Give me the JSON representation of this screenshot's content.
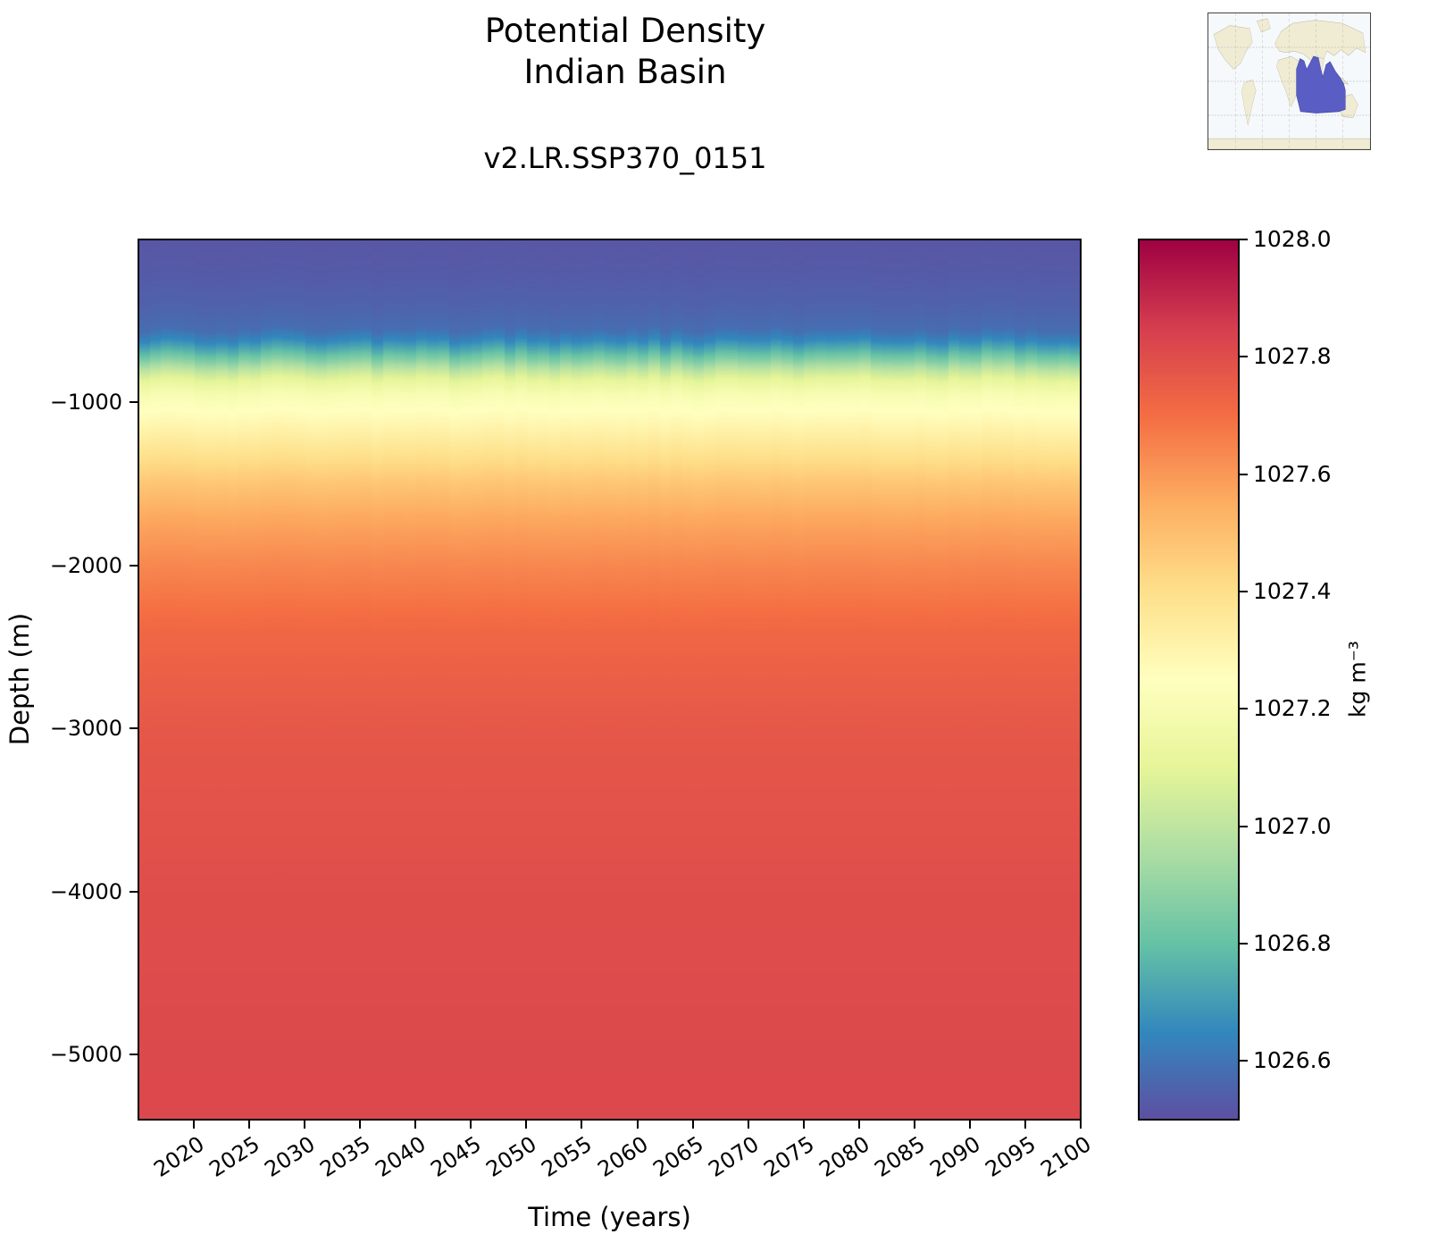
{
  "title": {
    "line1": "Potential Density",
    "line2": "Indian Basin"
  },
  "subtitle": "v2.LR.SSP370_0151",
  "inset_map": {
    "highlight_color": "#5a5ec4",
    "land_color": "#f0ecd4",
    "ocean_color": "#f6f9fb",
    "grid_color": "#aaaaaa"
  },
  "chart_data": {
    "type": "heatmap",
    "title": "Potential Density",
    "region": "Indian Basin",
    "run_label": "v2.LR.SSP370_0151",
    "xlabel": "Time (years)",
    "ylabel": "Depth (m)",
    "x_range": [
      2015,
      2100
    ],
    "x_ticks": [
      2020,
      2025,
      2030,
      2035,
      2040,
      2045,
      2050,
      2055,
      2060,
      2065,
      2070,
      2075,
      2080,
      2085,
      2090,
      2095,
      2100
    ],
    "y_range": [
      0,
      -5400
    ],
    "y_ticks": [
      -1000,
      -2000,
      -3000,
      -4000,
      -5000
    ],
    "y_tick_labels": [
      "−1000",
      "−2000",
      "−3000",
      "−4000",
      "−5000"
    ],
    "grid": false,
    "legend": "colorbar-right",
    "colorbar": {
      "label": "kg m⁻³",
      "vmin": 1026.5,
      "vmax": 1028.0,
      "ticks": [
        1026.6,
        1026.8,
        1027.0,
        1027.2,
        1027.4,
        1027.6,
        1027.8,
        1028.0
      ],
      "tick_labels": [
        "1026.6",
        "1026.8",
        "1027.0",
        "1027.2",
        "1027.4",
        "1027.6",
        "1027.8",
        "1028.0"
      ],
      "colormap": "Spectral_r",
      "stops": [
        {
          "t": 0.0,
          "color": "#5e4fa2"
        },
        {
          "t": 0.1,
          "color": "#3288bd"
        },
        {
          "t": 0.2,
          "color": "#66c2a5"
        },
        {
          "t": 0.3,
          "color": "#abdda4"
        },
        {
          "t": 0.4,
          "color": "#e6f598"
        },
        {
          "t": 0.5,
          "color": "#ffffbf"
        },
        {
          "t": 0.6,
          "color": "#fee08b"
        },
        {
          "t": 0.7,
          "color": "#fdae61"
        },
        {
          "t": 0.8,
          "color": "#f46d43"
        },
        {
          "t": 0.9,
          "color": "#d53e4f"
        },
        {
          "t": 1.0,
          "color": "#9e0142"
        }
      ]
    },
    "profile": {
      "depths_m": [
        0,
        -200,
        -400,
        -550,
        -620,
        -680,
        -740,
        -800,
        -870,
        -950,
        -1050,
        -1150,
        -1300,
        -1500,
        -1700,
        -2000,
        -2400,
        -3000,
        -4000,
        -5400
      ],
      "density_kg_m3": [
        1026.52,
        1026.53,
        1026.55,
        1026.58,
        1026.65,
        1026.75,
        1026.87,
        1027.0,
        1027.12,
        1027.2,
        1027.25,
        1027.3,
        1027.38,
        1027.48,
        1027.56,
        1027.64,
        1027.72,
        1027.77,
        1027.8,
        1027.82
      ]
    }
  }
}
